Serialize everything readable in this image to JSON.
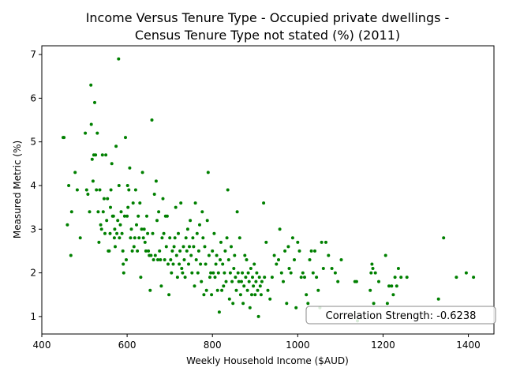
{
  "chart_data": {
    "type": "scatter",
    "title_line1": "Income Versus Tenure Type - Occupied private dwellings -",
    "title_line2": "Census Tenure Type not stated (%) (2011)",
    "xlabel": "Weekly Household Income ($AUD)",
    "ylabel": "Measured Metric (%)",
    "xlim": [
      400,
      1460
    ],
    "ylim": [
      0.6,
      7.2
    ],
    "xticks": [
      400,
      600,
      800,
      1000,
      1200,
      1400
    ],
    "yticks": [
      1,
      2,
      3,
      4,
      5,
      6,
      7
    ],
    "grid": false,
    "point_color": "#008000",
    "annotation": "Correlation Strength: -0.6238",
    "points": [
      [
        450,
        5.1
      ],
      [
        452,
        5.1
      ],
      [
        460,
        3.1
      ],
      [
        463,
        4.0
      ],
      [
        468,
        2.4
      ],
      [
        470,
        3.4
      ],
      [
        478,
        4.3
      ],
      [
        483,
        3.9
      ],
      [
        490,
        2.8
      ],
      [
        502,
        5.2
      ],
      [
        505,
        3.9
      ],
      [
        508,
        3.8
      ],
      [
        512,
        3.4
      ],
      [
        515,
        6.3
      ],
      [
        516,
        5.4
      ],
      [
        518,
        4.6
      ],
      [
        520,
        4.1
      ],
      [
        522,
        4.7
      ],
      [
        524,
        5.9
      ],
      [
        526,
        4.7
      ],
      [
        528,
        3.9
      ],
      [
        530,
        5.2
      ],
      [
        532,
        3.4
      ],
      [
        534,
        2.7
      ],
      [
        536,
        3.9
      ],
      [
        538,
        3.1
      ],
      [
        540,
        3.0
      ],
      [
        542,
        4.7
      ],
      [
        544,
        3.4
      ],
      [
        546,
        3.7
      ],
      [
        548,
        2.9
      ],
      [
        550,
        4.7
      ],
      [
        552,
        3.2
      ],
      [
        554,
        3.7
      ],
      [
        556,
        2.5
      ],
      [
        558,
        2.5
      ],
      [
        560,
        2.9
      ],
      [
        561,
        3.5
      ],
      [
        562,
        3.9
      ],
      [
        564,
        4.5
      ],
      [
        566,
        3.3
      ],
      [
        568,
        3.3
      ],
      [
        570,
        2.8
      ],
      [
        571,
        3.0
      ],
      [
        572,
        2.6
      ],
      [
        574,
        4.9
      ],
      [
        576,
        2.9
      ],
      [
        578,
        3.2
      ],
      [
        580,
        6.9
      ],
      [
        581,
        4.0
      ],
      [
        582,
        2.8
      ],
      [
        584,
        3.1
      ],
      [
        586,
        3.4
      ],
      [
        588,
        2.9
      ],
      [
        590,
        2.5
      ],
      [
        591,
        2.2
      ],
      [
        592,
        2.0
      ],
      [
        594,
        3.3
      ],
      [
        596,
        5.1
      ],
      [
        598,
        2.3
      ],
      [
        600,
        3.3
      ],
      [
        601,
        4.0
      ],
      [
        602,
        3.5
      ],
      [
        604,
        3.9
      ],
      [
        606,
        4.4
      ],
      [
        608,
        2.8
      ],
      [
        610,
        3.0
      ],
      [
        612,
        2.5
      ],
      [
        614,
        3.6
      ],
      [
        616,
        2.6
      ],
      [
        618,
        2.8
      ],
      [
        620,
        3.9
      ],
      [
        622,
        3.1
      ],
      [
        624,
        2.5
      ],
      [
        626,
        3.3
      ],
      [
        628,
        2.8
      ],
      [
        630,
        3.6
      ],
      [
        632,
        1.9
      ],
      [
        634,
        3.0
      ],
      [
        636,
        4.3
      ],
      [
        638,
        2.8
      ],
      [
        640,
        3.0
      ],
      [
        642,
        2.7
      ],
      [
        644,
        2.5
      ],
      [
        646,
        3.3
      ],
      [
        648,
        2.9
      ],
      [
        650,
        2.5
      ],
      [
        652,
        2.4
      ],
      [
        654,
        1.6
      ],
      [
        656,
        2.4
      ],
      [
        658,
        5.5
      ],
      [
        660,
        2.9
      ],
      [
        662,
        2.3
      ],
      [
        664,
        3.8
      ],
      [
        666,
        2.4
      ],
      [
        668,
        4.1
      ],
      [
        670,
        3.2
      ],
      [
        672,
        2.3
      ],
      [
        674,
        3.4
      ],
      [
        676,
        2.5
      ],
      [
        678,
        2.3
      ],
      [
        680,
        1.7
      ],
      [
        682,
        2.8
      ],
      [
        684,
        3.7
      ],
      [
        686,
        2.9
      ],
      [
        688,
        2.3
      ],
      [
        690,
        3.3
      ],
      [
        692,
        2.6
      ],
      [
        694,
        3.3
      ],
      [
        696,
        2.2
      ],
      [
        698,
        1.5
      ],
      [
        700,
        2.8
      ],
      [
        702,
        2.3
      ],
      [
        704,
        2.0
      ],
      [
        706,
        2.5
      ],
      [
        708,
        2.2
      ],
      [
        710,
        2.6
      ],
      [
        712,
        2.8
      ],
      [
        714,
        3.5
      ],
      [
        716,
        2.4
      ],
      [
        718,
        1.9
      ],
      [
        720,
        2.9
      ],
      [
        722,
        2.2
      ],
      [
        724,
        2.5
      ],
      [
        726,
        3.6
      ],
      [
        728,
        2.1
      ],
      [
        730,
        2.0
      ],
      [
        732,
        2.6
      ],
      [
        734,
        2.3
      ],
      [
        736,
        1.9
      ],
      [
        738,
        2.8
      ],
      [
        740,
        2.5
      ],
      [
        742,
        3.0
      ],
      [
        744,
        2.2
      ],
      [
        746,
        2.6
      ],
      [
        748,
        3.2
      ],
      [
        750,
        2.4
      ],
      [
        752,
        2.0
      ],
      [
        754,
        2.8
      ],
      [
        756,
        2.6
      ],
      [
        758,
        1.7
      ],
      [
        760,
        3.6
      ],
      [
        762,
        2.3
      ],
      [
        764,
        2.9
      ],
      [
        766,
        2.0
      ],
      [
        768,
        2.5
      ],
      [
        770,
        3.1
      ],
      [
        772,
        2.2
      ],
      [
        774,
        1.8
      ],
      [
        776,
        3.4
      ],
      [
        778,
        2.8
      ],
      [
        780,
        1.5
      ],
      [
        782,
        2.6
      ],
      [
        784,
        2.2
      ],
      [
        786,
        1.6
      ],
      [
        788,
        3.2
      ],
      [
        790,
        4.3
      ],
      [
        792,
        2.4
      ],
      [
        794,
        1.9
      ],
      [
        796,
        2.0
      ],
      [
        798,
        1.5
      ],
      [
        800,
        2.5
      ],
      [
        802,
        2.0
      ],
      [
        804,
        2.9
      ],
      [
        806,
        1.9
      ],
      [
        808,
        2.2
      ],
      [
        810,
        2.4
      ],
      [
        812,
        1.6
      ],
      [
        814,
        2.0
      ],
      [
        816,
        1.1
      ],
      [
        818,
        2.3
      ],
      [
        820,
        2.7
      ],
      [
        822,
        1.6
      ],
      [
        824,
        2.2
      ],
      [
        826,
        1.7
      ],
      [
        828,
        2.0
      ],
      [
        830,
        2.5
      ],
      [
        832,
        1.8
      ],
      [
        834,
        2.8
      ],
      [
        836,
        3.9
      ],
      [
        838,
        2.3
      ],
      [
        840,
        1.4
      ],
      [
        842,
        2.0
      ],
      [
        844,
        2.6
      ],
      [
        846,
        1.8
      ],
      [
        848,
        1.3
      ],
      [
        850,
        2.1
      ],
      [
        852,
        2.4
      ],
      [
        854,
        1.9
      ],
      [
        856,
        1.6
      ],
      [
        858,
        3.4
      ],
      [
        860,
        2.0
      ],
      [
        862,
        1.8
      ],
      [
        864,
        2.8
      ],
      [
        866,
        1.5
      ],
      [
        868,
        1.8
      ],
      [
        870,
        2.0
      ],
      [
        872,
        1.3
      ],
      [
        874,
        1.7
      ],
      [
        876,
        2.4
      ],
      [
        878,
        1.9
      ],
      [
        880,
        2.3
      ],
      [
        882,
        1.6
      ],
      [
        884,
        2.0
      ],
      [
        886,
        1.8
      ],
      [
        888,
        1.2
      ],
      [
        890,
        2.1
      ],
      [
        892,
        1.5
      ],
      [
        894,
        1.9
      ],
      [
        896,
        1.7
      ],
      [
        898,
        2.2
      ],
      [
        900,
        1.5
      ],
      [
        902,
        1.8
      ],
      [
        904,
        2.0
      ],
      [
        906,
        1.6
      ],
      [
        908,
        1.0
      ],
      [
        910,
        1.9
      ],
      [
        912,
        1.7
      ],
      [
        914,
        1.5
      ],
      [
        916,
        1.8
      ],
      [
        920,
        3.6
      ],
      [
        922,
        1.9
      ],
      [
        926,
        2.7
      ],
      [
        930,
        1.6
      ],
      [
        935,
        1.4
      ],
      [
        940,
        1.9
      ],
      [
        945,
        2.4
      ],
      [
        950,
        2.2
      ],
      [
        955,
        2.3
      ],
      [
        958,
        3.0
      ],
      [
        962,
        2.0
      ],
      [
        966,
        1.8
      ],
      [
        970,
        2.5
      ],
      [
        974,
        1.3
      ],
      [
        978,
        2.6
      ],
      [
        980,
        2.1
      ],
      [
        984,
        2.0
      ],
      [
        988,
        2.8
      ],
      [
        992,
        2.3
      ],
      [
        996,
        1.2
      ],
      [
        1000,
        2.7
      ],
      [
        1004,
        2.5
      ],
      [
        1008,
        1.9
      ],
      [
        1012,
        2.0
      ],
      [
        1016,
        1.9
      ],
      [
        1020,
        1.5
      ],
      [
        1024,
        1.3
      ],
      [
        1028,
        2.3
      ],
      [
        1032,
        2.5
      ],
      [
        1036,
        2.0
      ],
      [
        1040,
        2.5
      ],
      [
        1044,
        1.9
      ],
      [
        1048,
        1.6
      ],
      [
        1052,
        1.2
      ],
      [
        1056,
        2.7
      ],
      [
        1060,
        2.1
      ],
      [
        1066,
        2.7
      ],
      [
        1072,
        2.4
      ],
      [
        1080,
        2.1
      ],
      [
        1088,
        2.0
      ],
      [
        1094,
        1.8
      ],
      [
        1102,
        2.3
      ],
      [
        1134,
        1.8
      ],
      [
        1138,
        1.8
      ],
      [
        1140,
        0.9
      ],
      [
        1170,
        1.6
      ],
      [
        1172,
        2.0
      ],
      [
        1174,
        2.2
      ],
      [
        1176,
        2.1
      ],
      [
        1178,
        1.3
      ],
      [
        1182,
        2.0
      ],
      [
        1190,
        1.8
      ],
      [
        1206,
        2.4
      ],
      [
        1210,
        1.3
      ],
      [
        1214,
        1.7
      ],
      [
        1220,
        1.7
      ],
      [
        1224,
        1.5
      ],
      [
        1228,
        1.9
      ],
      [
        1232,
        1.7
      ],
      [
        1236,
        2.1
      ],
      [
        1242,
        1.9
      ],
      [
        1256,
        1.9
      ],
      [
        1330,
        1.4
      ],
      [
        1342,
        2.8
      ],
      [
        1372,
        1.9
      ],
      [
        1395,
        2.0
      ],
      [
        1412,
        1.9
      ]
    ]
  }
}
